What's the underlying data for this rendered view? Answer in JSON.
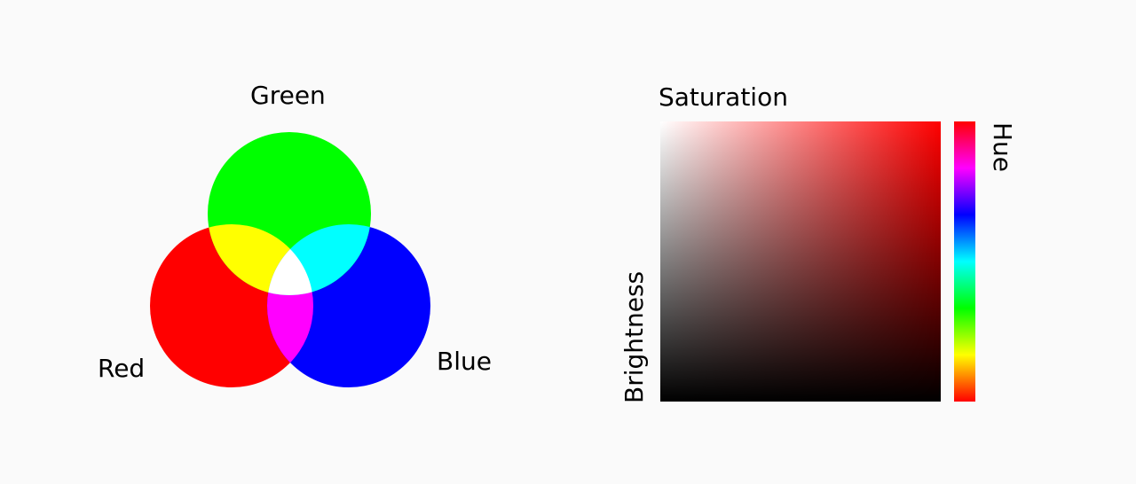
{
  "rgb": {
    "title_green": "Green",
    "label_red": "Red",
    "label_blue": "Blue",
    "colors": {
      "red": "#ff0000",
      "green": "#00ff00",
      "blue": "#0000ff",
      "yellow": "#ffff00",
      "cyan": "#00ffff",
      "magenta": "#ff00ff",
      "white": "#ffffff"
    }
  },
  "hsb": {
    "label_saturation": "Saturation",
    "label_brightness": "Brightness",
    "label_hue": "Hue",
    "hue_colors": [
      "#ff0000",
      "#ff00ff",
      "#0000ff",
      "#00ffff",
      "#00ff00",
      "#ffff00",
      "#ff0000"
    ]
  }
}
